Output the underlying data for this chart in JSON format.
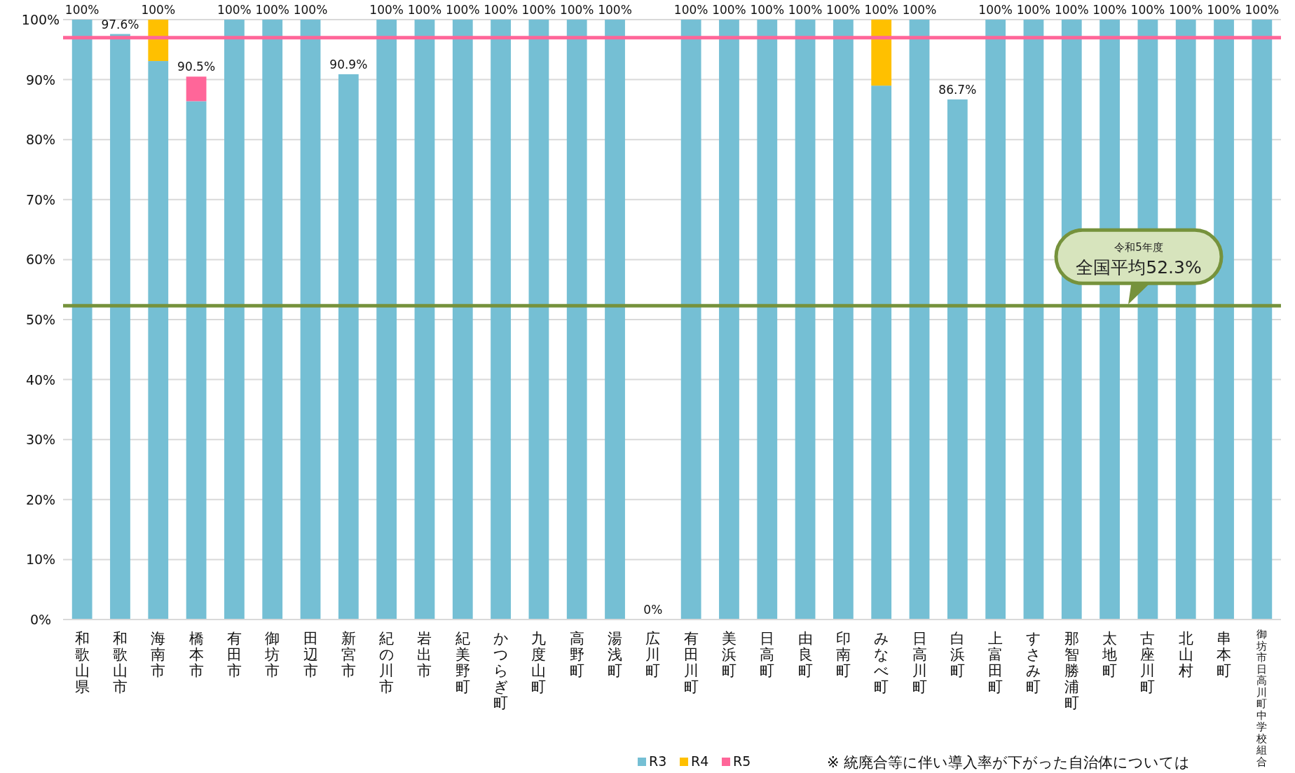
{
  "chart_data": {
    "type": "bar",
    "stacked": true,
    "categories": [
      "和歌山県",
      "和歌山市",
      "海南市",
      "橋本市",
      "有田市",
      "御坊市",
      "田辺市",
      "新宮市",
      "紀の川市",
      "岩出市",
      "紀美野町",
      "かつらぎ町",
      "九度山町",
      "高野町",
      "湯浅町",
      "広川町",
      "有田川町",
      "美浜町",
      "日高町",
      "由良町",
      "印南町",
      "みなべ町",
      "日高川町",
      "白浜町",
      "上富田町",
      "すさみ町",
      "那智勝浦町",
      "太地町",
      "古座川町",
      "北山村",
      "串本町",
      "御坊市日高川町中学校組合"
    ],
    "series": [
      {
        "name": "R3",
        "color": "#75bfd4",
        "values": [
          100,
          97.6,
          93.1,
          86.4,
          100,
          100,
          100,
          90.9,
          100,
          100,
          100,
          100,
          100,
          100,
          100,
          0,
          100,
          100,
          100,
          100,
          100,
          89.0,
          100,
          86.7,
          100,
          100,
          100,
          100,
          100,
          100,
          100,
          100
        ]
      },
      {
        "name": "R4",
        "color": "#ffc000",
        "values": [
          0,
          0,
          6.9,
          0,
          0,
          0,
          0,
          0,
          0,
          0,
          0,
          0,
          0,
          0,
          0,
          0,
          0,
          0,
          0,
          0,
          0,
          11.0,
          0,
          0,
          0,
          0,
          0,
          0,
          0,
          0,
          0,
          0
        ]
      },
      {
        "name": "R5",
        "color": "#ff6699",
        "values": [
          0,
          0,
          0,
          4.1,
          0,
          0,
          0,
          0,
          0,
          0,
          0,
          0,
          0,
          0,
          0,
          0,
          0,
          0,
          0,
          0,
          0,
          0,
          0,
          0,
          0,
          0,
          0,
          0,
          0,
          0,
          0,
          0
        ]
      }
    ],
    "totals": [
      "100%",
      "97.6%",
      "100%",
      "90.5%",
      "100%",
      "100%",
      "100%",
      "90.9%",
      "100%",
      "100%",
      "100%",
      "100%",
      "100%",
      "100%",
      "100%",
      "0%",
      "100%",
      "100%",
      "100%",
      "100%",
      "100%",
      "100%",
      "100%",
      "86.7%",
      "100%",
      "100%",
      "100%",
      "100%",
      "100%",
      "100%",
      "100%",
      "100%"
    ],
    "ylim": [
      0,
      100
    ],
    "yticks": [
      {
        "value": 0,
        "label": "0%"
      },
      {
        "value": 10,
        "label": "10%"
      },
      {
        "value": 20,
        "label": "20%"
      },
      {
        "value": 30,
        "label": "30%"
      },
      {
        "value": 40,
        "label": "40%"
      },
      {
        "value": 50,
        "label": "50%"
      },
      {
        "value": 60,
        "label": "60%"
      },
      {
        "value": 70,
        "label": "70%"
      },
      {
        "value": 80,
        "label": "80%"
      },
      {
        "value": 90,
        "label": "90%"
      },
      {
        "value": 100,
        "label": "100%"
      }
    ],
    "grid": "y",
    "legend": "bottom",
    "ref_lines": [
      {
        "axis": "y",
        "value": 97,
        "color": "#ff6699"
      },
      {
        "axis": "y",
        "value": 52.3,
        "color": "#76923c",
        "label": "令和5年度全国平均52.3%"
      }
    ],
    "annotations": [
      "※ 統廃合等に伴い導入率が下がった自治体については"
    ]
  }
}
